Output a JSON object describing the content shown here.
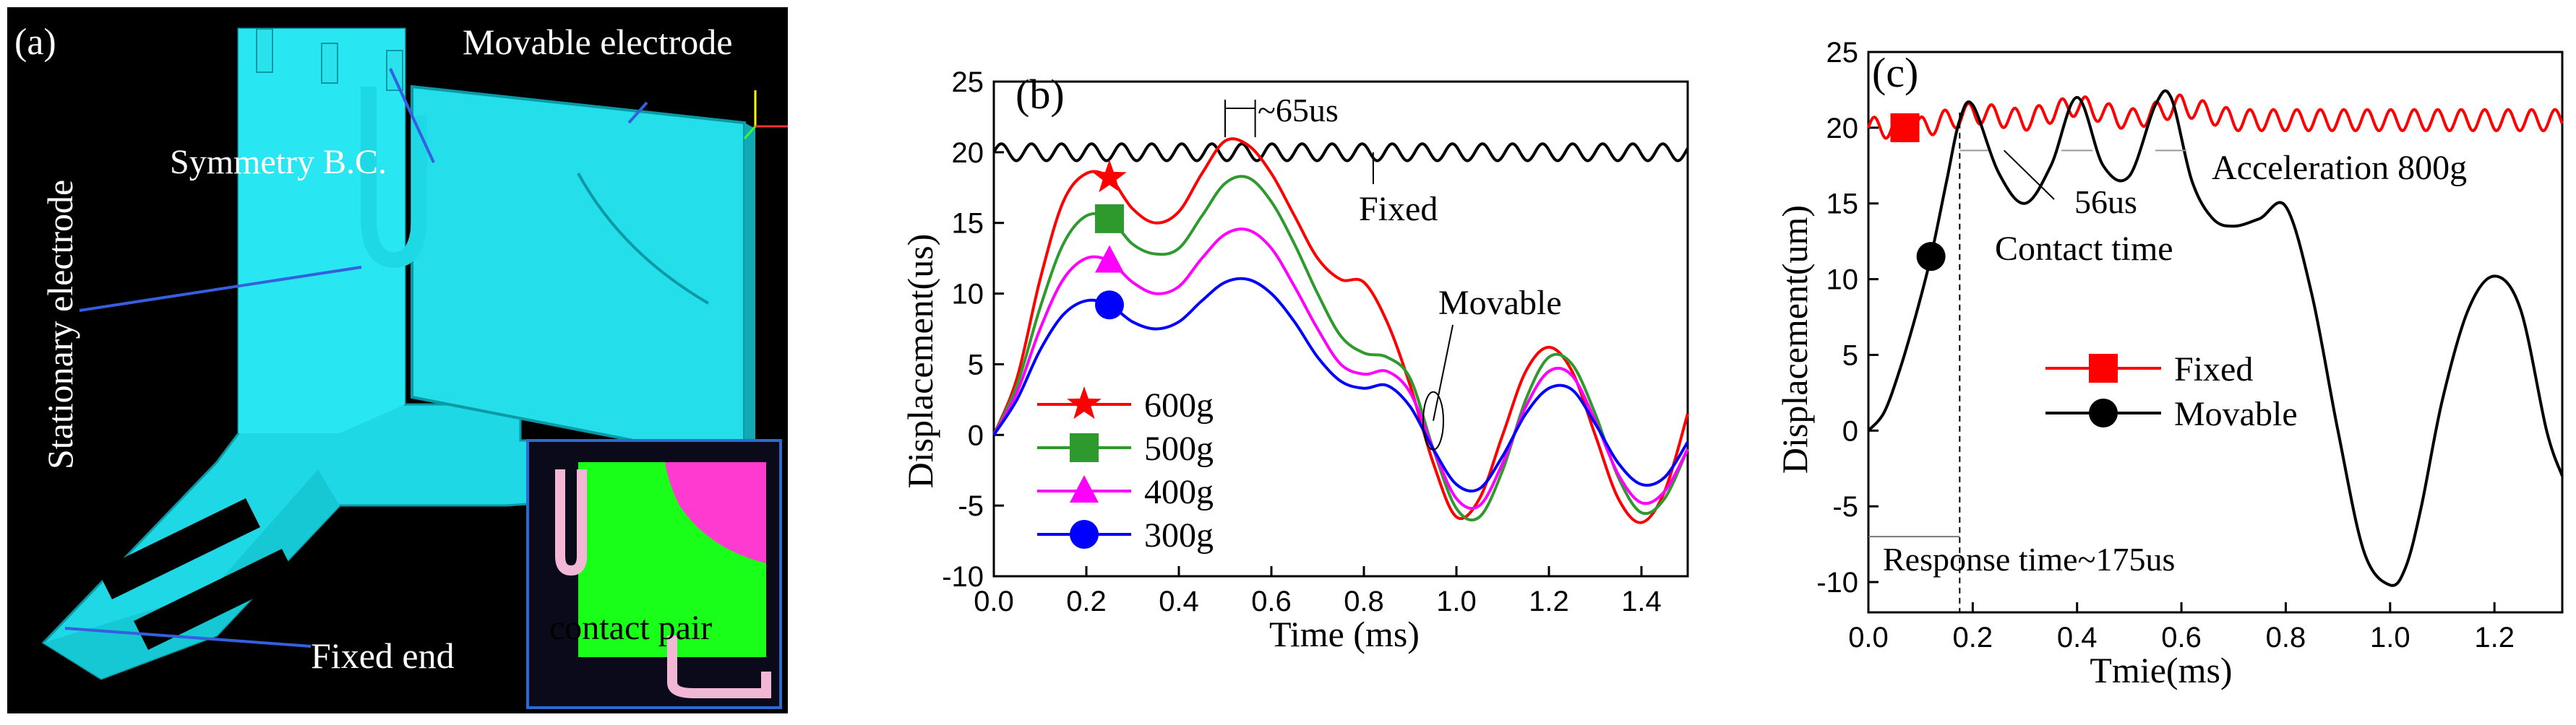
{
  "panel_a": {
    "label": "(a)",
    "labels": {
      "movable_electrode": "Movable electrode",
      "symmetry_bc": "Symmetry B.C.",
      "stationary_electrode": "Stationary electrode",
      "fixed_end": "Fixed end",
      "contact_pair": "contact pair"
    },
    "colors": {
      "background": "#000000",
      "structure": "#22e6f0",
      "inset_green": "#19ff19",
      "inset_magenta": "#ff3ad0",
      "inset_pink": "#f2b7d4"
    }
  },
  "chart_data": [
    {
      "id": "b",
      "type": "line",
      "panel_label": "(b)",
      "xlabel": "Time (ms)",
      "ylabel": "Displacement(us)",
      "xlim": [
        0.0,
        1.5
      ],
      "ylim": [
        -10,
        25
      ],
      "xticks": [
        "0.0",
        "0.2",
        "0.4",
        "0.6",
        "0.8",
        "1.0",
        "1.2",
        "1.4"
      ],
      "yticks": [
        "-10",
        "-5",
        "0",
        "5",
        "10",
        "15",
        "20",
        "25"
      ],
      "annotations": {
        "period": "~65us",
        "fixed": "Fixed",
        "movable": "Movable"
      },
      "series": [
        {
          "name": "Fixed",
          "color": "#000000",
          "marker": "none",
          "x": [
            0,
            0.05,
            0.1,
            0.15,
            0.2,
            0.25,
            0.3,
            0.35,
            0.4,
            0.45,
            0.5,
            0.55,
            0.6,
            0.65,
            0.7,
            0.75,
            0.8,
            0.85,
            0.9,
            0.95,
            1.0,
            1.05,
            1.1,
            1.15,
            1.2,
            1.25,
            1.3,
            1.35,
            1.4,
            1.45,
            1.5
          ],
          "y": [
            20,
            20,
            20,
            20,
            20,
            20,
            20,
            20,
            20,
            20,
            20,
            20,
            20,
            20,
            20,
            20,
            20,
            20,
            20,
            20,
            20,
            20,
            20,
            20,
            20,
            20,
            20,
            20,
            20,
            20,
            20
          ],
          "ripple_amplitude": 0.6,
          "ripple_period_ms": 0.065
        },
        {
          "name": "600g",
          "color": "#ff0000",
          "marker": "star",
          "marker_x": 0.25,
          "x": [
            0,
            0.05,
            0.1,
            0.15,
            0.2,
            0.25,
            0.3,
            0.35,
            0.4,
            0.45,
            0.5,
            0.55,
            0.6,
            0.65,
            0.7,
            0.75,
            0.8,
            0.85,
            0.9,
            0.95,
            1.0,
            1.05,
            1.1,
            1.15,
            1.2,
            1.25,
            1.3,
            1.35,
            1.4,
            1.45,
            1.5
          ],
          "y": [
            0,
            4,
            11,
            16.5,
            18.5,
            18.2,
            16,
            15,
            15.8,
            18.5,
            20.8,
            20.5,
            18.5,
            15.5,
            12.5,
            11,
            10.8,
            8,
            3.5,
            -2,
            -5.8,
            -4.5,
            0,
            4.5,
            6.2,
            4.5,
            0,
            -4.5,
            -6.2,
            -4,
            1.5
          ]
        },
        {
          "name": "500g",
          "color": "#2e9a2e",
          "marker": "square",
          "marker_x": 0.25,
          "x": [
            0,
            0.05,
            0.1,
            0.15,
            0.2,
            0.25,
            0.3,
            0.35,
            0.4,
            0.45,
            0.5,
            0.55,
            0.6,
            0.65,
            0.7,
            0.75,
            0.8,
            0.85,
            0.9,
            0.95,
            1.0,
            1.05,
            1.1,
            1.15,
            1.2,
            1.25,
            1.3,
            1.35,
            1.4,
            1.45,
            1.5
          ],
          "y": [
            0,
            3.5,
            9,
            13.5,
            15.5,
            15.3,
            13.5,
            12.8,
            13.2,
            15.5,
            17.8,
            18.2,
            16.5,
            13.5,
            10,
            7,
            5.8,
            5.5,
            4,
            -1,
            -5.2,
            -5.8,
            -2.5,
            2.5,
            5.5,
            5,
            1.5,
            -3,
            -5.5,
            -4.5,
            -1
          ]
        },
        {
          "name": "400g",
          "color": "#ff00ff",
          "marker": "triangle",
          "marker_x": 0.25,
          "x": [
            0,
            0.05,
            0.1,
            0.15,
            0.2,
            0.25,
            0.3,
            0.35,
            0.4,
            0.45,
            0.5,
            0.55,
            0.6,
            0.65,
            0.7,
            0.75,
            0.8,
            0.85,
            0.9,
            0.95,
            1.0,
            1.05,
            1.1,
            1.15,
            1.2,
            1.25,
            1.3,
            1.35,
            1.4,
            1.45,
            1.5
          ],
          "y": [
            0,
            3,
            7.5,
            11,
            12.5,
            12.3,
            10.8,
            10,
            10.5,
            12.5,
            14.2,
            14.5,
            13.2,
            10.5,
            7.5,
            5,
            4.3,
            4.5,
            3,
            -1,
            -4.5,
            -5,
            -2,
            2,
            4.5,
            4.2,
            1,
            -2.8,
            -4.8,
            -4,
            -1
          ]
        },
        {
          "name": "300g",
          "color": "#0000ff",
          "marker": "circle",
          "marker_x": 0.25,
          "x": [
            0,
            0.05,
            0.1,
            0.15,
            0.2,
            0.25,
            0.3,
            0.35,
            0.4,
            0.45,
            0.5,
            0.55,
            0.6,
            0.65,
            0.7,
            0.75,
            0.8,
            0.85,
            0.9,
            0.95,
            1.0,
            1.05,
            1.1,
            1.15,
            1.2,
            1.25,
            1.3,
            1.35,
            1.4,
            1.45,
            1.5
          ],
          "y": [
            0,
            2.5,
            6,
            8.5,
            9.5,
            9.2,
            8,
            7.5,
            8,
            9.5,
            10.8,
            11,
            10,
            8,
            5.5,
            3.8,
            3.3,
            3.5,
            2,
            -1,
            -3.5,
            -3.8,
            -1.5,
            1.5,
            3.3,
            3.2,
            0.8,
            -2,
            -3.5,
            -3,
            -0.5
          ]
        }
      ]
    },
    {
      "id": "c",
      "type": "line",
      "panel_label": "(c)",
      "xlabel": "Tmie(ms)",
      "ylabel": "Displacement(um)",
      "xlim": [
        0.0,
        1.33
      ],
      "ylim": [
        -12,
        25
      ],
      "xticks": [
        "0.0",
        "0.2",
        "0.4",
        "0.6",
        "0.8",
        "1.0",
        "1.2"
      ],
      "yticks": [
        "-10",
        "-5",
        "0",
        "5",
        "10",
        "15",
        "20",
        "25"
      ],
      "annotations": {
        "acceleration": "Acceleration 800g",
        "contact_interval": "56us",
        "contact_time": "Contact time",
        "response_time": "Response time~175us"
      },
      "series": [
        {
          "name": "Fixed",
          "color": "#ff0000",
          "marker": "square",
          "marker_x": 0.07,
          "x": [
            0,
            0.1,
            0.2,
            0.3,
            0.4,
            0.5,
            0.6,
            0.7,
            0.8,
            0.9,
            1.0,
            1.1,
            1.2,
            1.33
          ],
          "y": [
            20,
            20,
            21,
            20.5,
            21.5,
            20.5,
            21.5,
            20.5,
            20.5,
            20.5,
            20.5,
            20.5,
            20.5,
            20.5
          ],
          "ripple_amplitude": 0.7,
          "ripple_period_ms": 0.045
        },
        {
          "name": "Movable",
          "color": "#000000",
          "marker": "circle",
          "marker_x": 0.12,
          "x": [
            0,
            0.03,
            0.06,
            0.09,
            0.12,
            0.15,
            0.175,
            0.2,
            0.25,
            0.3,
            0.35,
            0.4,
            0.45,
            0.5,
            0.55,
            0.58,
            0.62,
            0.66,
            0.7,
            0.75,
            0.8,
            0.85,
            0.9,
            0.95,
            1.0,
            1.03,
            1.06,
            1.1,
            1.15,
            1.2,
            1.25,
            1.3,
            1.33
          ],
          "y": [
            0,
            1.2,
            4,
            7.5,
            11.5,
            16.5,
            20.5,
            21.5,
            17,
            15,
            17.5,
            22,
            17.5,
            16.8,
            21.5,
            22,
            16.5,
            14,
            13.5,
            14,
            14.8,
            9,
            0,
            -8,
            -10.2,
            -9,
            -5,
            2,
            8,
            10.2,
            8,
            0,
            -3
          ]
        }
      ]
    }
  ]
}
